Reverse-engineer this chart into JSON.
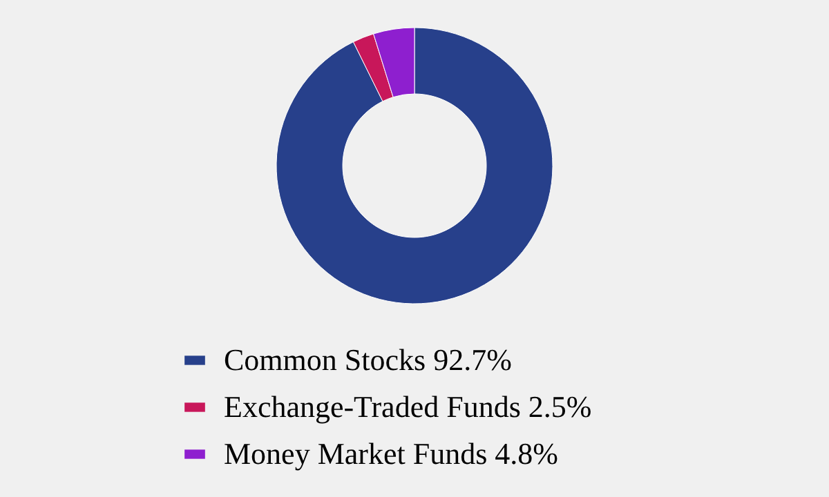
{
  "chart_data": {
    "type": "donut",
    "categories": [
      "Common Stocks 92.7%",
      "Exchange-Traded Funds 2.5%",
      "Money Market Funds 4.8%"
    ],
    "values": [
      92.7,
      2.5,
      4.8
    ],
    "colors": [
      "#27408b",
      "#c8175a",
      "#8e1fcf"
    ],
    "legend": "bottom"
  }
}
